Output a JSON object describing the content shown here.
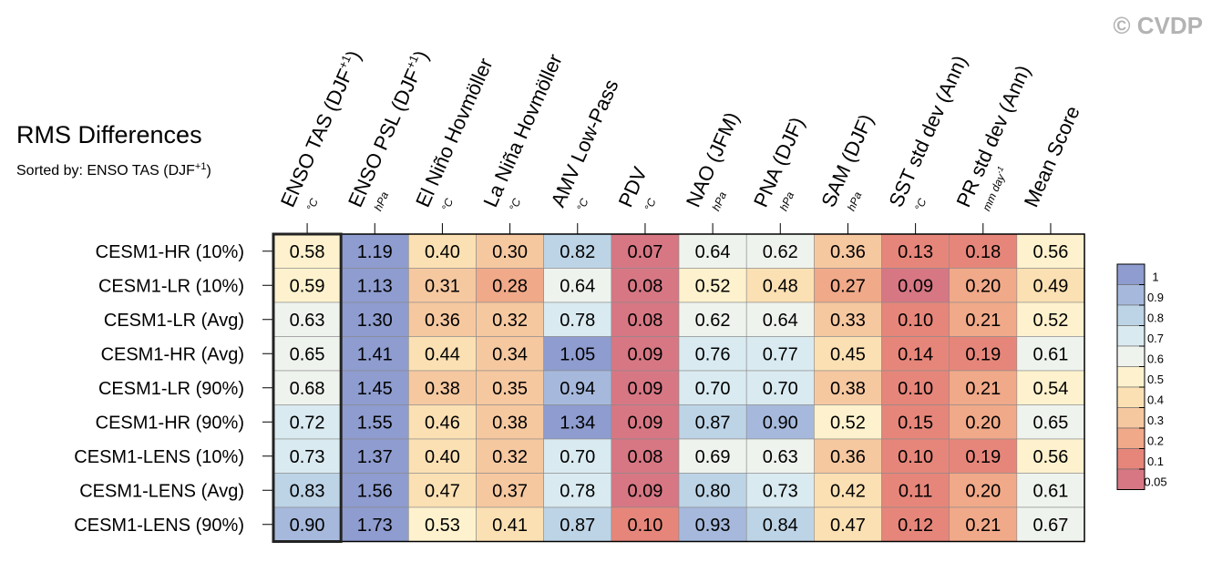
{
  "watermark": "© CVDP",
  "chart_data": {
    "type": "heatmap",
    "title": "RMS Differences",
    "subtitle": "Sorted by: ENSO TAS (DJF+1)",
    "subtitle_base": "Sorted by: ENSO TAS (DJF",
    "subtitle_sup": "+1",
    "subtitle_end": ")",
    "highlight_column": 0,
    "columns": [
      {
        "label": "ENSO TAS (DJF",
        "sup": "+1",
        "label_end": ")",
        "unit": "°C"
      },
      {
        "label": "ENSO PSL (DJF",
        "sup": "+1",
        "label_end": ")",
        "unit": "hPa"
      },
      {
        "label": "El Niño Hovmöller",
        "unit": "°C"
      },
      {
        "label": "La Niña Hovmöller",
        "unit": "°C"
      },
      {
        "label": "AMV Low-Pass",
        "unit": "°C"
      },
      {
        "label": "PDV",
        "unit": "°C"
      },
      {
        "label": "NAO (JFM)",
        "unit": "hPa"
      },
      {
        "label": "PNA (DJF)",
        "unit": "hPa"
      },
      {
        "label": "SAM (DJF)",
        "unit": "hPa"
      },
      {
        "label": "SST std dev (Ann)",
        "unit": "°C"
      },
      {
        "label": "PR std dev (Ann)",
        "unit": "mm day",
        "unit_sup": "-1"
      },
      {
        "label": "Mean Score",
        "unit": ""
      }
    ],
    "rows": [
      {
        "name": "CESM1-HR (10%)",
        "values": [
          0.58,
          1.19,
          0.4,
          0.3,
          0.82,
          0.07,
          0.64,
          0.62,
          0.36,
          0.13,
          0.18,
          0.56
        ]
      },
      {
        "name": "CESM1-LR (10%)",
        "values": [
          0.59,
          1.13,
          0.31,
          0.28,
          0.64,
          0.08,
          0.52,
          0.48,
          0.27,
          0.09,
          0.2,
          0.49
        ]
      },
      {
        "name": "CESM1-LR (Avg)",
        "values": [
          0.63,
          1.3,
          0.36,
          0.32,
          0.78,
          0.08,
          0.62,
          0.64,
          0.33,
          0.1,
          0.21,
          0.52
        ]
      },
      {
        "name": "CESM1-HR (Avg)",
        "values": [
          0.65,
          1.41,
          0.44,
          0.34,
          1.05,
          0.09,
          0.76,
          0.77,
          0.45,
          0.14,
          0.19,
          0.61
        ]
      },
      {
        "name": "CESM1-LR (90%)",
        "values": [
          0.68,
          1.45,
          0.38,
          0.35,
          0.94,
          0.09,
          0.7,
          0.7,
          0.38,
          0.1,
          0.21,
          0.54
        ]
      },
      {
        "name": "CESM1-HR (90%)",
        "values": [
          0.72,
          1.55,
          0.46,
          0.38,
          1.34,
          0.09,
          0.87,
          0.9,
          0.52,
          0.15,
          0.2,
          0.65
        ]
      },
      {
        "name": "CESM1-LENS (10%)",
        "values": [
          0.73,
          1.37,
          0.4,
          0.32,
          0.7,
          0.08,
          0.69,
          0.63,
          0.36,
          0.1,
          0.19,
          0.56
        ]
      },
      {
        "name": "CESM1-LENS (Avg)",
        "values": [
          0.83,
          1.56,
          0.47,
          0.37,
          0.78,
          0.09,
          0.8,
          0.73,
          0.42,
          0.11,
          0.2,
          0.61
        ]
      },
      {
        "name": "CESM1-LENS (90%)",
        "values": [
          0.9,
          1.73,
          0.53,
          0.41,
          0.87,
          0.1,
          0.93,
          0.84,
          0.47,
          0.12,
          0.21,
          0.67
        ]
      }
    ],
    "colorbar": {
      "levels": [
        1,
        0.9,
        0.8,
        0.7,
        0.6,
        0.5,
        0.4,
        0.3,
        0.2,
        0.1,
        0.05
      ],
      "labels": [
        "1",
        "0.9",
        "0.8",
        "0.7",
        "0.6",
        "0.5",
        "0.4",
        "0.3",
        "0.2",
        "0.1",
        "0.05"
      ],
      "colors": [
        "#8e9ccf",
        "#a6b9dc",
        "#bdd4e6",
        "#d9eaf0",
        "#eff3ee",
        "#fdf2cd",
        "#fbe0b3",
        "#f6c8a0",
        "#f0a989",
        "#e6867a",
        "#d77784"
      ]
    }
  }
}
